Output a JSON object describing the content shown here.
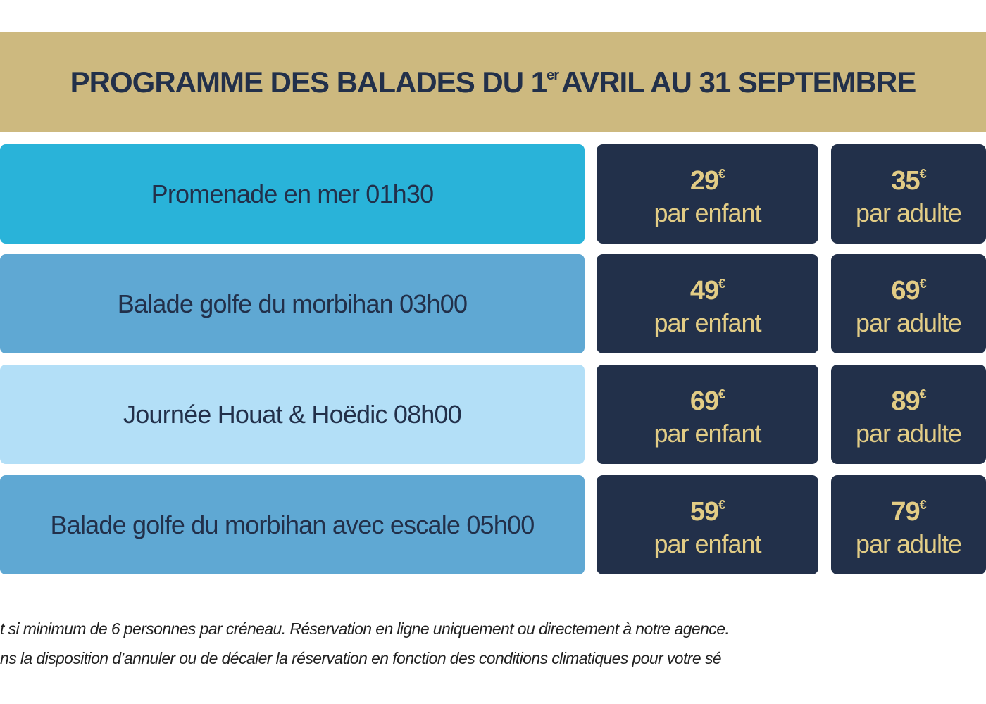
{
  "header": {
    "title_pre": "PROGRAMME DES BALADES DU 1",
    "title_sup": "er",
    "title_post": "AVRIL AU 31 SEPTEMBRE",
    "bg_color": "#cdb97f"
  },
  "colors": {
    "dark": "#22304a",
    "gold_text": "#e2cc85"
  },
  "rows": [
    {
      "label": "Promenade en mer 01h30",
      "color": "#29b3d9",
      "child_price": "29",
      "adult_price": "35"
    },
    {
      "label": "Balade golfe du morbihan 03h00",
      "color": "#5fa8d3",
      "child_price": "49",
      "adult_price": "69"
    },
    {
      "label": "Journée Houat & Hoëdic 08h00",
      "color": "#b3dff7",
      "child_price": "69",
      "adult_price": "89"
    },
    {
      "label": "Balade golfe du morbihan avec escale 05h00",
      "color": "#5fa8d3",
      "child_price": "59",
      "adult_price": "79"
    }
  ],
  "currency": "€",
  "child_label": "par enfant",
  "adult_label": "par adulte",
  "footer": {
    "line1": "t si minimum de 6 personnes par créneau. Réservation en ligne uniquement ou directement à notre agence.",
    "line2": "ns la disposition d’annuler ou de décaler la réservation en fonction des conditions climatiques pour votre sé"
  }
}
